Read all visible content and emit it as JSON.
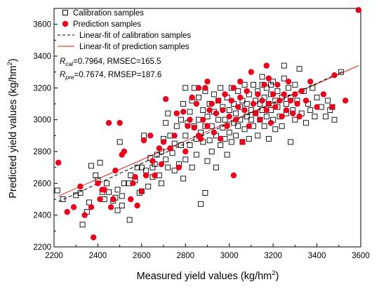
{
  "chart_data": {
    "type": "scatter",
    "xlabel": "Measured yield values",
    "xlabel_unit": "(kg/hm",
    "xlabel_unit_sup": "2",
    "xlabel_unit_close": ")",
    "ylabel": "Predicted yield values",
    "ylabel_unit": "(kg/hm",
    "ylabel_unit_sup": "2",
    "ylabel_unit_close": ")",
    "xlim": [
      2200,
      3600
    ],
    "ylim": [
      2200,
      3700
    ],
    "xticks": [
      2200,
      2400,
      2600,
      2800,
      3000,
      3200,
      3400,
      3600
    ],
    "yticks": [
      2200,
      2400,
      2600,
      2800,
      3000,
      3200,
      3400,
      3600
    ],
    "legend_position": "top-left",
    "legend": {
      "calibration": "Calibration samples",
      "prediction": "Prediction samples",
      "cal_fit": "Linear-fit of calibration samples",
      "pred_fit": "Linear-fit of prediction samples"
    },
    "stats": {
      "r_cal_symbol": "R",
      "r_cal_sub": "cal",
      "r_cal_text": "=0.7964, RMSEC=165.5",
      "r_pre_symbol": "R",
      "r_pre_sub": "pre",
      "r_pre_text": "=0.7674, RMSEP=187.6"
    },
    "cal_fit_line": {
      "x": [
        2220,
        3520
      ],
      "y": [
        2485,
        3305
      ],
      "style": "dashed",
      "color": "#000000"
    },
    "pred_fit_line": {
      "x": [
        2220,
        3590
      ],
      "y": [
        2520,
        3340
      ],
      "style": "solid",
      "color": "#e31a1c"
    },
    "series": [
      {
        "name": "Calibration samples",
        "marker": "open-square",
        "color": "#000000",
        "points": [
          [
            2215,
            2555
          ],
          [
            2240,
            2500
          ],
          [
            2300,
            2525
          ],
          [
            2320,
            2540
          ],
          [
            2330,
            2340
          ],
          [
            2350,
            2420
          ],
          [
            2360,
            2480
          ],
          [
            2370,
            2710
          ],
          [
            2390,
            2650
          ],
          [
            2400,
            2620
          ],
          [
            2410,
            2730
          ],
          [
            2420,
            2545
          ],
          [
            2430,
            2500
          ],
          [
            2440,
            2600
          ],
          [
            2450,
            2545
          ],
          [
            2470,
            2490
          ],
          [
            2480,
            2510
          ],
          [
            2490,
            2560
          ],
          [
            2490,
            2430
          ],
          [
            2500,
            2860
          ],
          [
            2510,
            2520
          ],
          [
            2510,
            2460
          ],
          [
            2520,
            2600
          ],
          [
            2540,
            2600
          ],
          [
            2545,
            2370
          ],
          [
            2550,
            2650
          ],
          [
            2570,
            2620
          ],
          [
            2580,
            2700
          ],
          [
            2590,
            2540
          ],
          [
            2600,
            2700
          ],
          [
            2600,
            2550
          ],
          [
            2610,
            2900
          ],
          [
            2620,
            2680
          ],
          [
            2630,
            2580
          ],
          [
            2640,
            2760
          ],
          [
            2650,
            2700
          ],
          [
            2650,
            2640
          ],
          [
            2660,
            2720
          ],
          [
            2670,
            2780
          ],
          [
            2680,
            2650
          ],
          [
            2690,
            2800
          ],
          [
            2690,
            2600
          ],
          [
            2700,
            2880
          ],
          [
            2710,
            2980
          ],
          [
            2710,
            2750
          ],
          [
            2720,
            2700
          ],
          [
            2720,
            3040
          ],
          [
            2730,
            2900
          ],
          [
            2740,
            2790
          ],
          [
            2750,
            2850
          ],
          [
            2750,
            2680
          ],
          [
            2760,
            2960
          ],
          [
            2770,
            2720
          ],
          [
            2780,
            2840
          ],
          [
            2780,
            3000
          ],
          [
            2790,
            3100
          ],
          [
            2790,
            2630
          ],
          [
            2800,
            2900
          ],
          [
            2800,
            3200
          ],
          [
            2800,
            2750
          ],
          [
            2810,
            2980
          ],
          [
            2820,
            3050
          ],
          [
            2820,
            2840
          ],
          [
            2830,
            2700
          ],
          [
            2830,
            3120
          ],
          [
            2840,
            2960
          ],
          [
            2840,
            3200
          ],
          [
            2850,
            2880
          ],
          [
            2850,
            2780
          ],
          [
            2860,
            3000
          ],
          [
            2860,
            3140
          ],
          [
            2870,
            2470
          ],
          [
            2870,
            2920
          ],
          [
            2880,
            3060
          ],
          [
            2880,
            2860
          ],
          [
            2890,
            3180
          ],
          [
            2890,
            2540
          ],
          [
            2890,
            2960
          ],
          [
            2900,
            3020
          ],
          [
            2900,
            2740
          ],
          [
            2910,
            2870
          ],
          [
            2910,
            3100
          ],
          [
            2920,
            2960
          ],
          [
            2920,
            2800
          ],
          [
            2930,
            3050
          ],
          [
            2930,
            3160
          ],
          [
            2940,
            2900
          ],
          [
            2940,
            2700
          ],
          [
            2950,
            3000
          ],
          [
            2950,
            3120
          ],
          [
            2960,
            2840
          ],
          [
            2960,
            3200
          ],
          [
            2970,
            2950
          ],
          [
            2970,
            3080
          ],
          [
            2980,
            2880
          ],
          [
            2980,
            3000
          ],
          [
            2990,
            3140
          ],
          [
            2990,
            2780
          ],
          [
            3000,
            3060
          ],
          [
            3000,
            2920
          ],
          [
            3010,
            3200
          ],
          [
            3010,
            2860
          ],
          [
            3020,
            2980
          ],
          [
            3020,
            3100
          ],
          [
            3030,
            3040
          ],
          [
            3030,
            2900
          ],
          [
            3040,
            3180
          ],
          [
            3040,
            2960
          ],
          [
            3050,
            3080
          ],
          [
            3050,
            3000
          ],
          [
            3060,
            2860
          ],
          [
            3060,
            3120
          ],
          [
            3070,
            2940
          ],
          [
            3070,
            3220
          ],
          [
            3080,
            3020
          ],
          [
            3080,
            3100
          ],
          [
            3090,
            2880
          ],
          [
            3090,
            3160
          ],
          [
            3100,
            3000
          ],
          [
            3100,
            3060
          ],
          [
            3110,
            3220
          ],
          [
            3110,
            2960
          ],
          [
            3120,
            3120
          ],
          [
            3120,
            3040
          ],
          [
            3130,
            3180
          ],
          [
            3130,
            2900
          ],
          [
            3140,
            3000
          ],
          [
            3140,
            3100
          ],
          [
            3150,
            3220
          ],
          [
            3150,
            3060
          ],
          [
            3160,
            2960
          ],
          [
            3160,
            3140
          ],
          [
            3170,
            3020
          ],
          [
            3170,
            3200
          ],
          [
            3180,
            3100
          ],
          [
            3180,
            2880
          ],
          [
            3190,
            3060
          ],
          [
            3190,
            3160
          ],
          [
            3200,
            3000
          ],
          [
            3200,
            3240
          ],
          [
            3210,
            3120
          ],
          [
            3210,
            2940
          ],
          [
            3220,
            3080
          ],
          [
            3220,
            3180
          ],
          [
            3230,
            3020
          ],
          [
            3240,
            3140
          ],
          [
            3240,
            2960
          ],
          [
            3250,
            3260
          ],
          [
            3250,
            3340
          ],
          [
            3260,
            3100
          ],
          [
            3260,
            3040
          ],
          [
            3270,
            3200
          ],
          [
            3280,
            2860
          ],
          [
            3280,
            3140
          ],
          [
            3290,
            3060
          ],
          [
            3300,
            3000
          ],
          [
            3300,
            3220
          ],
          [
            3310,
            3120
          ],
          [
            3320,
            3320
          ],
          [
            3330,
            3040
          ],
          [
            3340,
            3180
          ],
          [
            3350,
            2980
          ],
          [
            3360,
            3100
          ],
          [
            3370,
            3060
          ],
          [
            3380,
            3200
          ],
          [
            3390,
            3020
          ],
          [
            3400,
            3140
          ],
          [
            3420,
            3080
          ],
          [
            3440,
            3020
          ],
          [
            3450,
            3120
          ],
          [
            3460,
            3060
          ],
          [
            3470,
            3080
          ],
          [
            3480,
            3000
          ],
          [
            3510,
            3300
          ],
          [
            3150,
            3270
          ],
          [
            3190,
            3220
          ]
        ]
      },
      {
        "name": "Prediction samples",
        "marker": "filled-circle",
        "color": "#e8001c",
        "points": [
          [
            2220,
            2730
          ],
          [
            2260,
            2420
          ],
          [
            2290,
            2450
          ],
          [
            2320,
            2580
          ],
          [
            2340,
            2400
          ],
          [
            2370,
            2450
          ],
          [
            2380,
            2260
          ],
          [
            2400,
            2600
          ],
          [
            2410,
            2500
          ],
          [
            2420,
            2560
          ],
          [
            2430,
            2560
          ],
          [
            2450,
            2980
          ],
          [
            2460,
            2450
          ],
          [
            2470,
            2500
          ],
          [
            2480,
            2680
          ],
          [
            2500,
            2980
          ],
          [
            2510,
            2780
          ],
          [
            2520,
            2800
          ],
          [
            2550,
            2500
          ],
          [
            2560,
            2600
          ],
          [
            2570,
            2640
          ],
          [
            2580,
            2460
          ],
          [
            2600,
            2550
          ],
          [
            2610,
            2870
          ],
          [
            2620,
            2650
          ],
          [
            2640,
            2900
          ],
          [
            2650,
            2740
          ],
          [
            2660,
            2650
          ],
          [
            2680,
            2820
          ],
          [
            2690,
            2720
          ],
          [
            2700,
            2860
          ],
          [
            2710,
            3130
          ],
          [
            2730,
            2820
          ],
          [
            2750,
            2900
          ],
          [
            2760,
            3040
          ],
          [
            2770,
            2700
          ],
          [
            2790,
            3050
          ],
          [
            2800,
            2800
          ],
          [
            2810,
            2960
          ],
          [
            2820,
            3000
          ],
          [
            2830,
            3140
          ],
          [
            2840,
            2950
          ],
          [
            2850,
            3100
          ],
          [
            2860,
            3200
          ],
          [
            2870,
            2880
          ],
          [
            2880,
            3000
          ],
          [
            2890,
            3200
          ],
          [
            2900,
            2960
          ],
          [
            2910,
            3060
          ],
          [
            2920,
            3100
          ],
          [
            2930,
            2920
          ],
          [
            2940,
            3040
          ],
          [
            2950,
            3120
          ],
          [
            2960,
            2880
          ],
          [
            2970,
            3060
          ],
          [
            2980,
            3160
          ],
          [
            2990,
            2960
          ],
          [
            3000,
            3020
          ],
          [
            3010,
            3120
          ],
          [
            3020,
            2650
          ],
          [
            3020,
            3200
          ],
          [
            3030,
            3000
          ],
          [
            3040,
            3080
          ],
          [
            3050,
            3140
          ],
          [
            3060,
            2860
          ],
          [
            3070,
            3060
          ],
          [
            3080,
            3180
          ],
          [
            3090,
            2960
          ],
          [
            3100,
            3300
          ],
          [
            3110,
            3100
          ],
          [
            3120,
            3040
          ],
          [
            3130,
            3160
          ],
          [
            3140,
            3000
          ],
          [
            3150,
            3120
          ],
          [
            3160,
            3220
          ],
          [
            3170,
            3060
          ],
          [
            3170,
            3340
          ],
          [
            3180,
            3100
          ],
          [
            3190,
            2980
          ],
          [
            3200,
            3160
          ],
          [
            3210,
            3080
          ],
          [
            3220,
            3220
          ],
          [
            3230,
            3120
          ],
          [
            3240,
            3020
          ],
          [
            3250,
            3160
          ],
          [
            3260,
            3060
          ],
          [
            3270,
            3240
          ],
          [
            3280,
            3120
          ],
          [
            3290,
            3040
          ],
          [
            3300,
            3160
          ],
          [
            3310,
            3100
          ],
          [
            3320,
            3020
          ],
          [
            3330,
            3180
          ],
          [
            3350,
            3120
          ],
          [
            3370,
            3240
          ],
          [
            3400,
            3080
          ],
          [
            3430,
            3160
          ],
          [
            3470,
            3080
          ],
          [
            3480,
            3280
          ],
          [
            3530,
            3120
          ],
          [
            3590,
            3690
          ],
          [
            2860,
            2900
          ],
          [
            2900,
            3240
          ],
          [
            3050,
            3240
          ],
          [
            3180,
            3260
          ]
        ]
      }
    ]
  }
}
